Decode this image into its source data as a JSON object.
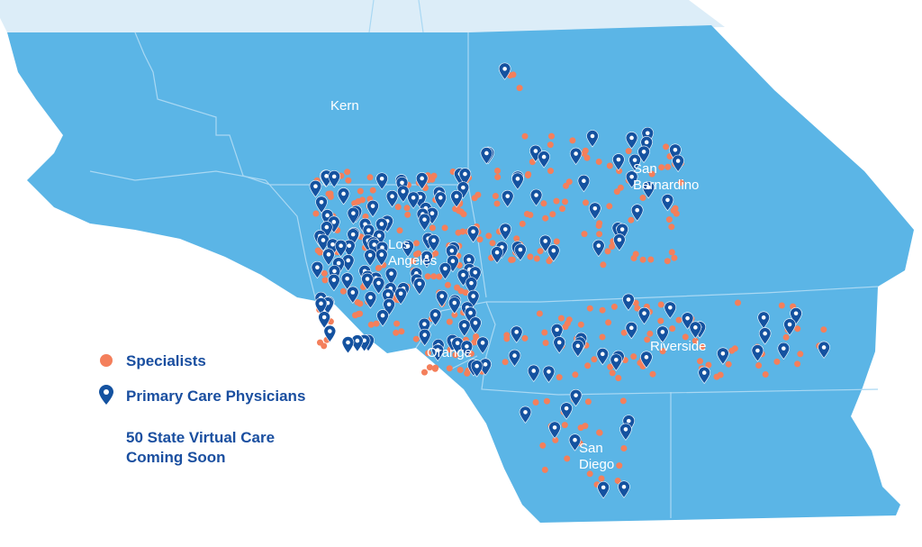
{
  "map": {
    "regions": [
      {
        "lines": [
          "Kern"
        ]
      },
      {
        "lines": [
          "San",
          "Bernardino"
        ]
      },
      {
        "lines": [
          "Los",
          "Angeles"
        ]
      },
      {
        "lines": [
          "Orange"
        ]
      },
      {
        "lines": [
          "Riverside"
        ]
      },
      {
        "lines": [
          "San",
          "Diego"
        ]
      }
    ],
    "legend": {
      "specialists": "Specialists",
      "primary_care": "Primary Care Physicians",
      "note": [
        "50 State Virtual Care",
        "Coming Soon"
      ]
    }
  }
}
